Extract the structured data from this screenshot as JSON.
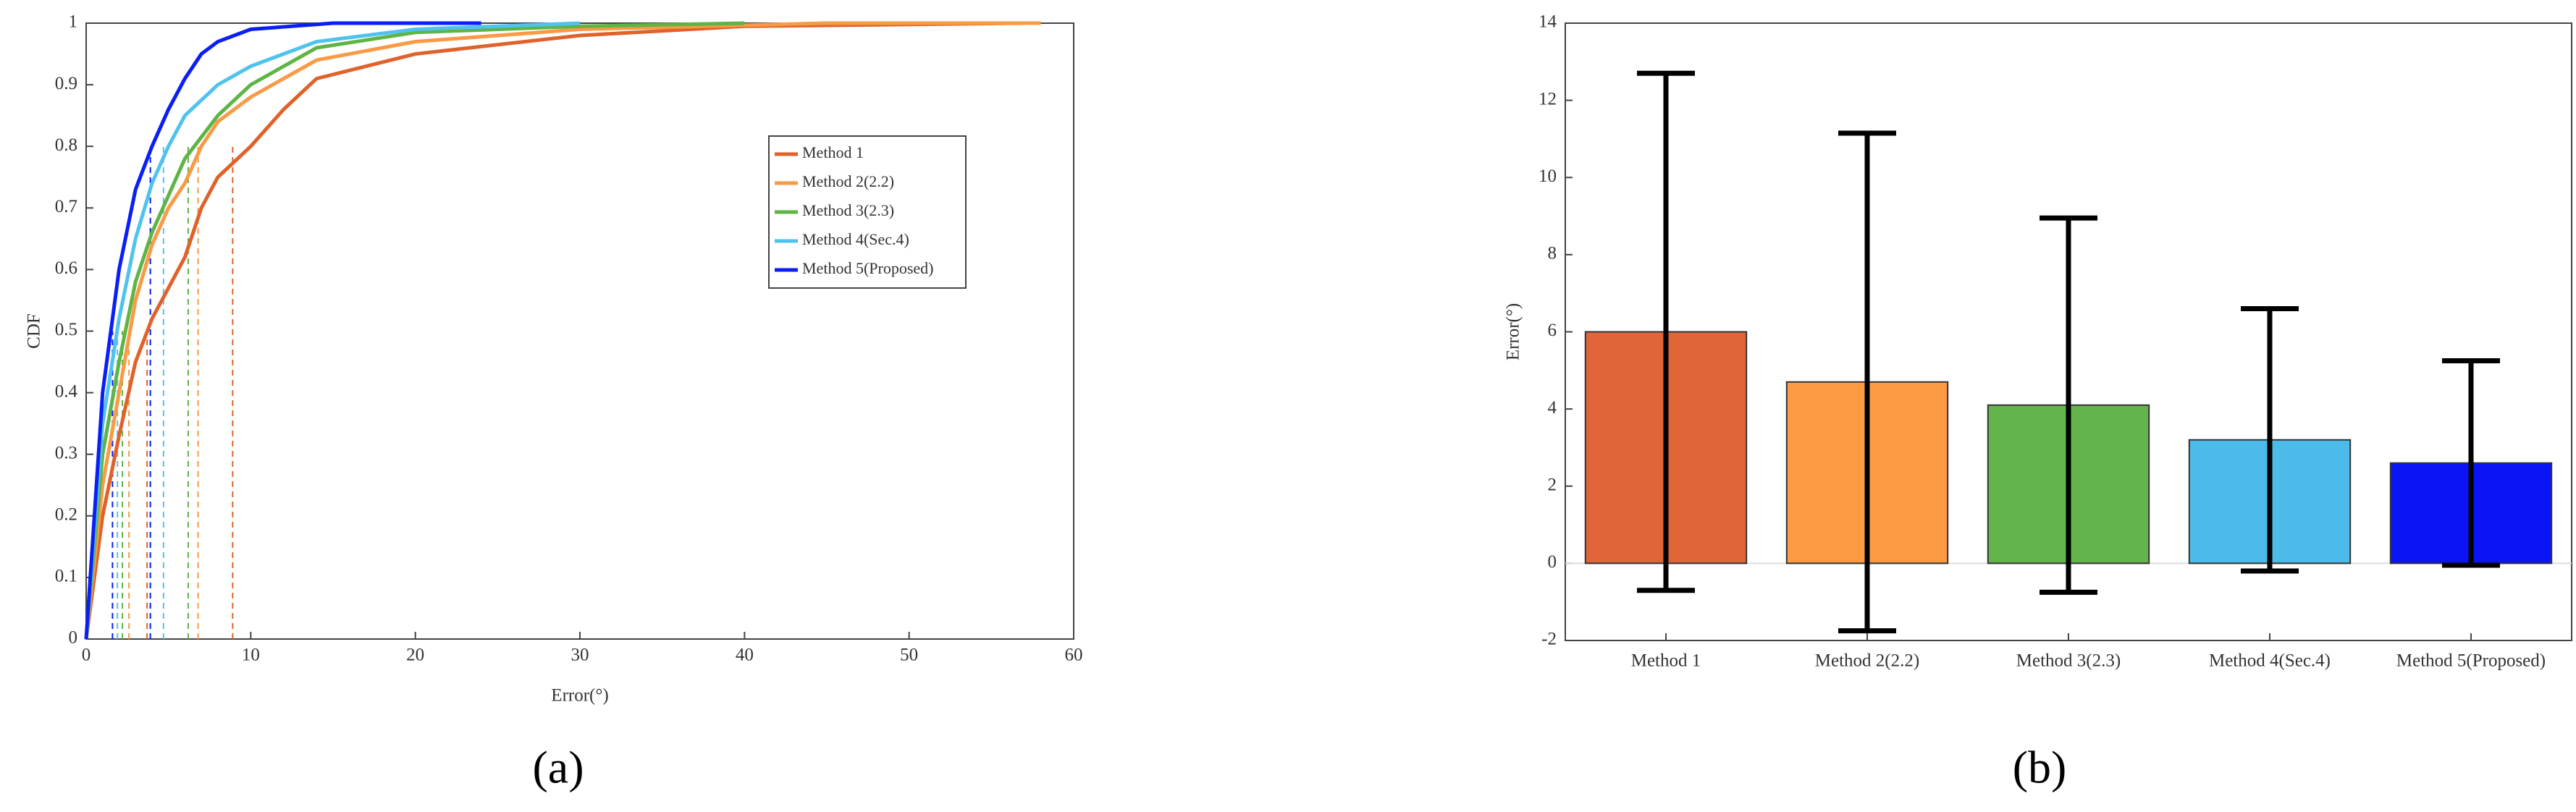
{
  "chart_data": [
    {
      "type": "line",
      "panel_label": "(a)",
      "x_label": "Error(°)",
      "y_label": "CDF",
      "xlim": [
        0,
        60
      ],
      "xticks": [
        0,
        10,
        20,
        30,
        40,
        50,
        60
      ],
      "ylim": [
        0,
        1
      ],
      "yticks": [
        0,
        0.1,
        0.2,
        0.3,
        0.4,
        0.5,
        0.6,
        0.7,
        0.8,
        0.9,
        1
      ],
      "series": [
        {
          "name": "Method 1",
          "color": "#e0622b",
          "x": [
            0,
            1,
            2,
            3,
            4,
            5,
            6,
            7,
            8,
            10,
            12,
            14,
            20,
            30,
            40,
            57
          ],
          "values": [
            0,
            0.2,
            0.33,
            0.45,
            0.52,
            0.57,
            0.62,
            0.7,
            0.75,
            0.8,
            0.86,
            0.91,
            0.95,
            0.98,
            0.995,
            1
          ],
          "dashed": [
            {
              "x": 3.7,
              "y": 0.5
            },
            {
              "x": 8.9,
              "y": 0.8
            }
          ]
        },
        {
          "name": "Method 2(2.2)",
          "color": "#f99a45",
          "x": [
            0,
            1,
            2,
            3,
            4,
            5,
            6,
            7,
            8,
            10,
            14,
            20,
            30,
            45,
            58
          ],
          "values": [
            0,
            0.25,
            0.4,
            0.55,
            0.64,
            0.7,
            0.74,
            0.8,
            0.84,
            0.88,
            0.94,
            0.97,
            0.99,
            1,
            1
          ],
          "dashed": [
            {
              "x": 2.6,
              "y": 0.5
            },
            {
              "x": 6.8,
              "y": 0.8
            }
          ]
        },
        {
          "name": "Method 3(2.3)",
          "color": "#5fb446",
          "x": [
            0,
            1,
            2,
            3,
            4,
            5,
            6,
            8,
            10,
            14,
            20,
            30,
            40
          ],
          "values": [
            0,
            0.3,
            0.45,
            0.58,
            0.66,
            0.72,
            0.78,
            0.85,
            0.9,
            0.96,
            0.985,
            0.995,
            1
          ],
          "dashed": [
            {
              "x": 2.2,
              "y": 0.5
            },
            {
              "x": 6.2,
              "y": 0.8
            }
          ]
        },
        {
          "name": "Method 4(Sec.4)",
          "color": "#4fc3ee",
          "x": [
            0,
            1,
            2,
            3,
            4,
            5,
            6,
            8,
            10,
            14,
            20,
            30
          ],
          "values": [
            0,
            0.35,
            0.52,
            0.65,
            0.74,
            0.8,
            0.85,
            0.9,
            0.93,
            0.97,
            0.99,
            1
          ],
          "dashed": [
            {
              "x": 1.9,
              "y": 0.5
            },
            {
              "x": 4.7,
              "y": 0.8
            }
          ]
        },
        {
          "name": "Method 5(Proposed)",
          "color": "#0a1ef5",
          "x": [
            0,
            1,
            2,
            3,
            4,
            5,
            6,
            7,
            8,
            10,
            15,
            24
          ],
          "values": [
            0,
            0.4,
            0.6,
            0.73,
            0.8,
            0.86,
            0.91,
            0.95,
            0.97,
            0.99,
            1,
            1
          ],
          "dashed": [
            {
              "x": 1.6,
              "y": 0.5
            },
            {
              "x": 3.9,
              "y": 0.8
            }
          ]
        }
      ]
    },
    {
      "type": "bar",
      "panel_label": "(b)",
      "y_label": "Error(°)",
      "categories": [
        "Method 1",
        "Method 2(2.2)",
        "Method 3(2.3)",
        "Method 4(Sec.4)",
        "Method 5(Proposed)"
      ],
      "values": [
        6,
        4.7,
        4.1,
        3.2,
        2.6
      ],
      "errors": [
        6.7,
        6.45,
        4.85,
        3.4,
        2.65
      ],
      "colors": [
        "#e0663a",
        "#fd9b43",
        "#63b54b",
        "#4cbbe9",
        "#0b14f5"
      ],
      "ylim": [
        -2,
        14
      ],
      "yticks": [
        -2,
        0,
        2,
        4,
        6,
        8,
        10,
        12,
        14
      ]
    }
  ]
}
